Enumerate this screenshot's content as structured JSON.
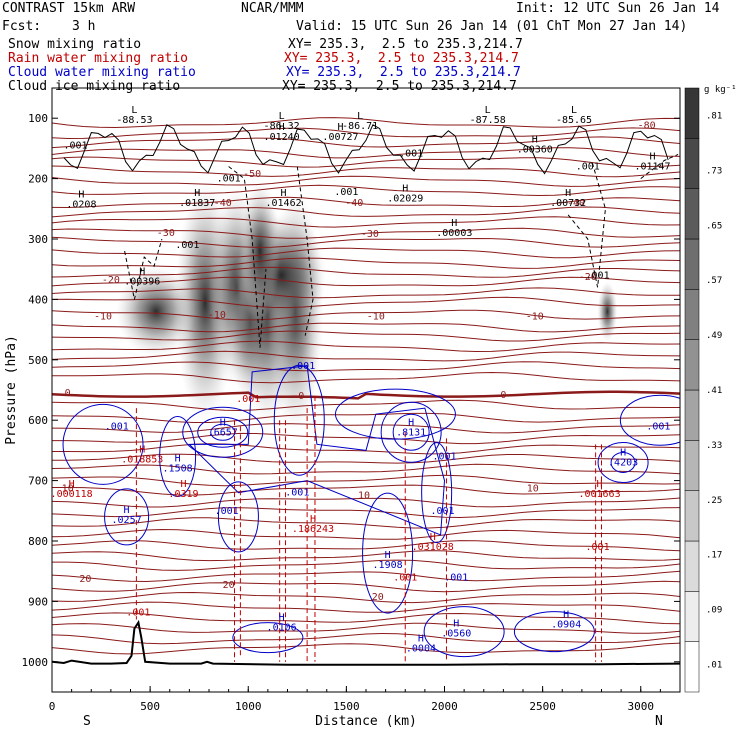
{
  "header": {
    "model": "CONTRAST 15km ARW",
    "org": "NCAR/MMM",
    "init": "Init: 12 UTC Sun 26 Jan 14",
    "fcst_label": "Fcst:",
    "fcst_value": "3 h",
    "valid": "Valid: 15 UTC Sun 26 Jan 14 (01 ChT Mon 27 Jan 14)",
    "fields": [
      {
        "name": "Snow mixing ratio",
        "xy": "XY= 235.3,  2.5 to 235.3,214.7",
        "color": "#000000"
      },
      {
        "name": "Rain water mixing ratio",
        "xy": "XY= 235.3,  2.5 to 235.3,214.7",
        "color": "#c00000"
      },
      {
        "name": "Cloud water mixing ratio",
        "xy": "XY= 235.3,  2.5 to 235.3,214.7",
        "color": "#0000c8"
      },
      {
        "name": "Cloud ice mixing ratio",
        "xy": "XY= 235.3,  2.5 to 235.3,214.7",
        "color": "#000000"
      }
    ]
  },
  "chart_data": {
    "type": "contour",
    "xlabel": "Distance (km)",
    "ylabel": "Pressure (hPa)",
    "xlim": [
      0,
      3200
    ],
    "ylim": [
      1050,
      50
    ],
    "x_ticks": [
      0,
      500,
      1000,
      1500,
      2000,
      2500,
      3000
    ],
    "y_ticks": [
      100,
      200,
      300,
      400,
      500,
      600,
      700,
      800,
      900,
      1000
    ],
    "left_end_label": "S",
    "right_end_label": "N",
    "colorbar": {
      "unit": "g kg⁻¹",
      "labels": [
        ".01",
        ".09",
        ".17",
        ".25",
        ".33",
        ".41",
        ".49",
        ".57",
        ".65",
        ".73",
        ".81"
      ]
    },
    "temperature_contours": [
      {
        "label": "-80",
        "x": 3030,
        "p": 112
      },
      {
        "label": "-50",
        "x": 1020,
        "p": 192
      },
      {
        "label": "-40",
        "x": 870,
        "p": 240
      },
      {
        "label": "-40",
        "x": 1540,
        "p": 240
      },
      {
        "label": "-40",
        "x": 2670,
        "p": 240
      },
      {
        "label": "-30",
        "x": 580,
        "p": 290
      },
      {
        "label": "-30",
        "x": 1620,
        "p": 292
      },
      {
        "label": "-20",
        "x": 300,
        "p": 368
      },
      {
        "label": "-20",
        "x": 2730,
        "p": 363
      },
      {
        "label": "-10",
        "x": 260,
        "p": 428
      },
      {
        "label": "-10",
        "x": 840,
        "p": 426
      },
      {
        "label": "-10",
        "x": 1650,
        "p": 428
      },
      {
        "label": "-10",
        "x": 2460,
        "p": 428
      },
      {
        "label": "0",
        "x": 80,
        "p": 555
      },
      {
        "label": "0",
        "x": 1270,
        "p": 560
      },
      {
        "label": "0",
        "x": 2300,
        "p": 558
      },
      {
        "label": "10",
        "x": 80,
        "p": 713
      },
      {
        "label": "10",
        "x": 1590,
        "p": 725
      },
      {
        "label": "10",
        "x": 2450,
        "p": 713
      },
      {
        "label": "20",
        "x": 170,
        "p": 863
      },
      {
        "label": "20",
        "x": 900,
        "p": 873
      },
      {
        "label": "20",
        "x": 1660,
        "p": 893
      }
    ],
    "snow_maxima": [
      {
        "label": "L",
        "value": "-88.53",
        "x": 420,
        "p": 108
      },
      {
        "label": "L",
        "value": "-86.32",
        "x": 1170,
        "p": 118
      },
      {
        "label": "L",
        "value": "-86.71",
        "x": 1570,
        "p": 118
      },
      {
        "label": "L",
        "value": "-87.58",
        "x": 2220,
        "p": 108
      },
      {
        "label": "L",
        "value": "-85.65",
        "x": 2660,
        "p": 108
      },
      {
        "label": "H",
        "value": ".01240",
        "x": 1170,
        "p": 136
      },
      {
        "label": "H",
        "value": ".00727",
        "x": 1470,
        "p": 136
      },
      {
        "label": "H",
        "value": ".00360",
        "x": 2460,
        "p": 157
      },
      {
        "label": "H",
        "value": ".01147",
        "x": 3060,
        "p": 185
      },
      {
        "label": "H",
        "value": ".0208",
        "x": 150,
        "p": 248
      },
      {
        "label": "H",
        "value": ".01837",
        "x": 740,
        "p": 245
      },
      {
        "label": "H",
        "value": ".01462",
        "x": 1180,
        "p": 245
      },
      {
        "label": "H",
        "value": ".02029",
        "x": 1800,
        "p": 238
      },
      {
        "label": "H",
        "value": ".00732",
        "x": 2630,
        "p": 245
      },
      {
        "label": "H",
        "value": ".00003",
        "x": 2050,
        "p": 295
      },
      {
        "label": "H",
        "value": ".00396",
        "x": 460,
        "p": 375
      }
    ],
    "cloud_water_maxima": [
      {
        "label": "H",
        "value": ".6657",
        "x": 870,
        "p": 625
      },
      {
        "label": "H",
        "value": ".8131",
        "x": 1830,
        "p": 625
      },
      {
        "label": "H",
        "value": ".4203",
        "x": 2910,
        "p": 675
      },
      {
        "label": "H",
        "value": ".1508",
        "x": 640,
        "p": 685
      },
      {
        "label": "H",
        "value": ".0257",
        "x": 380,
        "p": 770
      },
      {
        "label": "H",
        "value": ".1908",
        "x": 1710,
        "p": 845
      },
      {
        "label": "H",
        "value": ".0106",
        "x": 1170,
        "p": 948
      },
      {
        "label": "H",
        "value": ".0004",
        "x": 1880,
        "p": 983
      },
      {
        "label": "H",
        "value": ".0560",
        "x": 2060,
        "p": 958
      },
      {
        "label": "H",
        "value": ".0904",
        "x": 2620,
        "p": 943
      }
    ],
    "rain_maxima": [
      {
        "label": "H",
        "value": ".018853",
        "x": 460,
        "p": 670
      },
      {
        "label": "H",
        "value": ".000118",
        "x": 100,
        "p": 727
      },
      {
        "label": "H",
        "value": ".001663",
        "x": 2790,
        "p": 727
      },
      {
        "label": "H",
        "value": ".0319",
        "x": 670,
        "p": 727
      },
      {
        "label": "H",
        "value": ".186243",
        "x": 1330,
        "p": 785
      },
      {
        "label": "H",
        "value": ".031028",
        "x": 1940,
        "p": 815
      }
    ],
    "small_value_labels": [
      {
        "value": ".001",
        "x": 120,
        "p": 150,
        "color": "#000000"
      },
      {
        "value": ".001",
        "x": 900,
        "p": 205,
        "color": "#000000"
      },
      {
        "value": ".001",
        "x": 1500,
        "p": 227,
        "color": "#000000"
      },
      {
        "value": ".001",
        "x": 1830,
        "p": 163,
        "color": "#000000"
      },
      {
        "value": ".001",
        "x": 2730,
        "p": 185,
        "color": "#000000"
      },
      {
        "value": ".001",
        "x": 690,
        "p": 315,
        "color": "#000000"
      },
      {
        "value": ".001",
        "x": 2780,
        "p": 365,
        "color": "#000000"
      },
      {
        "value": ".001",
        "x": 1280,
        "p": 515,
        "color": "#0000c8"
      },
      {
        "value": ".001",
        "x": 1000,
        "p": 570,
        "color": "#c00000"
      },
      {
        "value": ".001",
        "x": 330,
        "p": 615,
        "color": "#0000c8"
      },
      {
        "value": ".001",
        "x": 2000,
        "p": 665,
        "color": "#0000c8"
      },
      {
        "value": ".001",
        "x": 3090,
        "p": 615,
        "color": "#0000c8"
      },
      {
        "value": ".001",
        "x": 1250,
        "p": 725,
        "color": "#0000c8"
      },
      {
        "value": ".001",
        "x": 890,
        "p": 755,
        "color": "#0000c8"
      },
      {
        "value": ".001",
        "x": 1990,
        "p": 755,
        "color": "#0000c8"
      },
      {
        "value": ".001",
        "x": 2780,
        "p": 815,
        "color": "#c00000"
      },
      {
        "value": ".001",
        "x": 2060,
        "p": 865,
        "color": "#0000c8"
      },
      {
        "value": ".001",
        "x": 1800,
        "p": 865,
        "color": "#c00000"
      },
      {
        "value": ".001",
        "x": 440,
        "p": 923,
        "color": "#c00000"
      }
    ],
    "terrain_p": [
      [
        0,
        1000
      ],
      [
        60,
        1002
      ],
      [
        100,
        998
      ],
      [
        200,
        1003
      ],
      [
        300,
        1003
      ],
      [
        380,
        1002
      ],
      [
        405,
        990
      ],
      [
        420,
        945
      ],
      [
        440,
        935
      ],
      [
        455,
        960
      ],
      [
        475,
        1000
      ],
      [
        600,
        1003
      ],
      [
        760,
        1003
      ],
      [
        790,
        1000
      ],
      [
        820,
        1003
      ],
      [
        1200,
        1005
      ],
      [
        1600,
        1005
      ],
      [
        2000,
        1005
      ],
      [
        2400,
        1004
      ],
      [
        2800,
        1004
      ],
      [
        3200,
        1003
      ]
    ]
  }
}
